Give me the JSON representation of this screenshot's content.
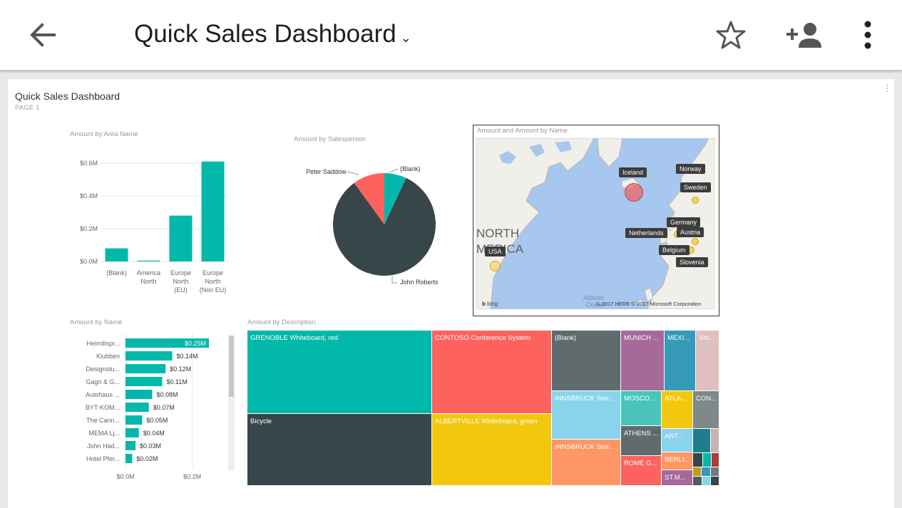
{
  "appbar": {
    "title": "Quick Sales Dashboard",
    "caret": "⌄",
    "back_icon": "arrow-left-icon",
    "favorite_icon": "star-outline-icon",
    "share_icon": "person-add-icon",
    "more_icon": "more-vert-icon"
  },
  "report": {
    "title": "Quick Sales Dashboard",
    "page": "PAGE 1",
    "kebab": "⋮"
  },
  "colors": {
    "teal": "#01b8aa",
    "dark": "#374649",
    "red": "#fd625e",
    "yellow": "#f2c80f"
  },
  "area_chart": {
    "title": "Amount by Area Name",
    "yticks": [
      "$0.6M",
      "$0.4M",
      "$0.2M",
      "$0.0M"
    ],
    "categories": [
      [
        "(Blank)"
      ],
      [
        "America",
        "North"
      ],
      [
        "Europe",
        "North",
        "(EU)"
      ],
      [
        "Europe",
        "North",
        "(Non EU)"
      ]
    ]
  },
  "pie_chart": {
    "title": "Amount by Salesperson",
    "labels": [
      "Peter Saddow",
      "(Blank)",
      "John Roberts"
    ]
  },
  "map_visual": {
    "title": "Amount and Amount by Name",
    "region_text_1": "NORTH",
    "region_text_2": "MERICA",
    "ocean_text_1": "Atlantic",
    "ocean_text_2": "Ocean",
    "tags": [
      "Iceland",
      "Norway",
      "Sweden",
      "Germany",
      "Netherlands",
      "Austria",
      "Belgium",
      "Slovenia",
      "USA"
    ],
    "bing": "bing",
    "copyright": "© 2017 HERE   © 2017 Microsoft Corporation"
  },
  "name_chart": {
    "title": "Amount by Name",
    "names": [
      "Heimilispr...",
      "Klubben",
      "Designstu...",
      "Gagn & G...",
      "Autohaus ...",
      "BYT-KOM...",
      "The Cann...",
      "MEMA Lj...",
      "John Had...",
      "Hotel Pfer..."
    ],
    "value_labels": [
      "$0.25M",
      "$0.14M",
      "$0.12M",
      "$0.11M",
      "$0.08M",
      "$0.07M",
      "$0.05M",
      "$0.04M",
      "$0.03M",
      "$0.02M"
    ],
    "xticks": [
      "$0.0M",
      "$0.2M"
    ]
  },
  "treemap": {
    "title": "Amount by Description",
    "labels": [
      "GRENOBLE Whiteboard, red",
      "Bicycle",
      "CONTOSO Conference System",
      "ALBERTVILLE Whiteboard, green",
      "(Blank)",
      "INNSBRUCK Stor...",
      "INNSBRUCK Stor...",
      "MUNICH ...",
      "MEXI...",
      "Sid...",
      "MOSCO...",
      "ATLA...",
      "CON...",
      "ATHENS ...",
      "ANT...",
      "ROME G...",
      "BERLI...",
      "ST.M..."
    ]
  },
  "chart_data": [
    {
      "type": "bar",
      "title": "Amount by Area Name",
      "categories": [
        "(Blank)",
        "America North",
        "Europe North (EU)",
        "Europe North (Non EU)"
      ],
      "values": [
        0.08,
        0.005,
        0.28,
        0.61
      ],
      "units": "$M",
      "ylim": [
        0,
        0.6
      ],
      "grid": true
    },
    {
      "type": "pie",
      "title": "Amount by Salesperson",
      "labels": [
        "(Blank)",
        "John Roberts",
        "Peter Saddow"
      ],
      "values": [
        0.07,
        0.83,
        0.1
      ]
    },
    {
      "type": "bar",
      "orientation": "horizontal",
      "title": "Amount by Name",
      "categories": [
        "Heimilispr...",
        "Klubben",
        "Designstu...",
        "Gagn & G...",
        "Autohaus ...",
        "BYT-KOM...",
        "The Cann...",
        "MEMA Lj...",
        "John Had...",
        "Hotel Pfer..."
      ],
      "values": [
        0.25,
        0.14,
        0.12,
        0.11,
        0.08,
        0.07,
        0.05,
        0.04,
        0.03,
        0.02
      ],
      "units": "$M"
    },
    {
      "type": "heatmap",
      "title": "Amount by Description",
      "categories": [
        "GRENOBLE Whiteboard, red",
        "Bicycle",
        "CONTOSO Conference System",
        "ALBERTVILLE Whiteboard, green",
        "(Blank)",
        "INNSBRUCK Stor...",
        "INNSBRUCK Stor...",
        "MUNICH ...",
        "MEXI...",
        "Sid...",
        "MOSCO...",
        "ATLA...",
        "CON...",
        "ATHENS ...",
        "ANT...",
        "ROME G...",
        "BERLI...",
        "ST.M..."
      ]
    }
  ]
}
